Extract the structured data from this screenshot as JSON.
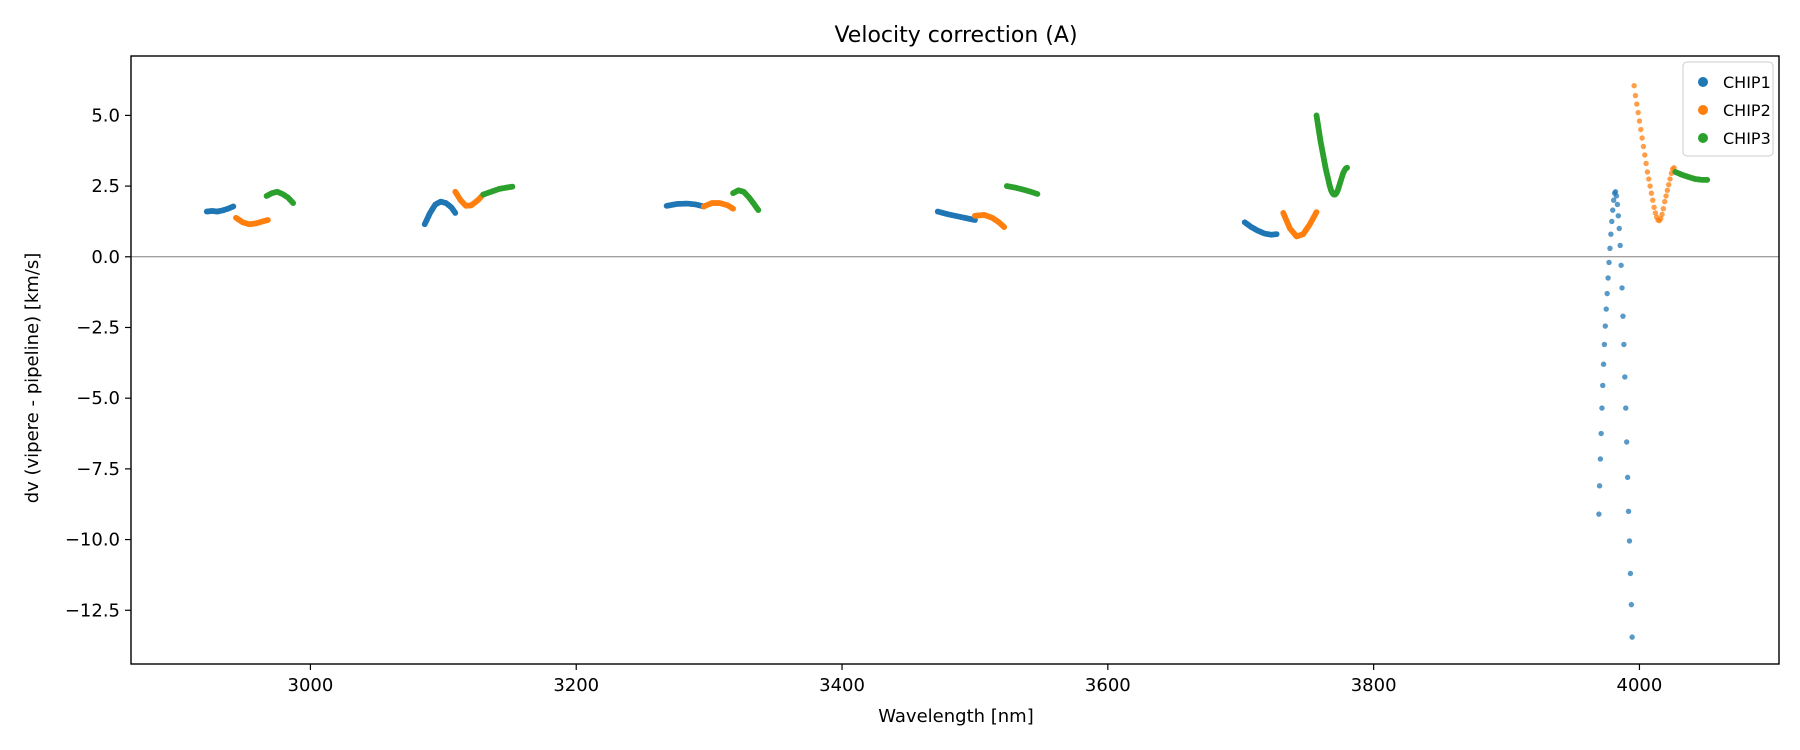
{
  "chart_data": {
    "type": "scatter",
    "title": "Velocity correction (A)",
    "xlabel": "Wavelength [nm]",
    "ylabel": "dv (vipere - pipeline) [km/s]",
    "xlim": [
      2865,
      4105
    ],
    "ylim": [
      -14.4,
      7.1
    ],
    "xticks": [
      3000,
      3200,
      3400,
      3600,
      3800,
      4000
    ],
    "xtick_labels": [
      "3000",
      "3200",
      "3400",
      "3600",
      "3800",
      "4000"
    ],
    "yticks": [
      5.0,
      2.5,
      0.0,
      -2.5,
      -5.0,
      -7.5,
      -10.0,
      -12.5
    ],
    "ytick_labels": [
      "5.0",
      "2.5",
      "0.0",
      "−2.5",
      "−5.0",
      "−7.5",
      "−10.0",
      "−12.5"
    ],
    "hline": 0.0,
    "grid": false,
    "legend_position": "top-right",
    "series": [
      {
        "name": "CHIP1",
        "color": "#1f77b4",
        "segments": [
          {
            "x": [
              2922,
              2926,
              2930,
              2934,
              2938,
              2942
            ],
            "y": [
              1.6,
              1.62,
              1.6,
              1.64,
              1.7,
              1.78
            ]
          },
          {
            "x": [
              3086,
              3090,
              3094,
              3098,
              3102,
              3106,
              3109
            ],
            "y": [
              1.15,
              1.55,
              1.85,
              1.95,
              1.9,
              1.75,
              1.55
            ]
          },
          {
            "x": [
              3268,
              3276,
              3284,
              3290,
              3296
            ],
            "y": [
              1.8,
              1.87,
              1.88,
              1.85,
              1.78
            ]
          },
          {
            "x": [
              3472,
              3480,
              3488,
              3494,
              3500
            ],
            "y": [
              1.6,
              1.5,
              1.42,
              1.36,
              1.3
            ]
          },
          {
            "x": [
              3703,
              3708,
              3713,
              3718,
              3723,
              3727
            ],
            "y": [
              1.22,
              1.05,
              0.92,
              0.82,
              0.78,
              0.8
            ]
          },
          {
            "x": [
              3969.5,
              3970,
              3970.6,
              3971.2,
              3971.8,
              3972.4,
              3973,
              3973.6,
              3974.3,
              3975,
              3975.7,
              3976.4,
              3977.1,
              3977.8,
              3978.5,
              3979.2,
              3979.9,
              3980.6,
              3981.3,
              3982,
              3982.7,
              3983.4,
              3984.1,
              3984.8,
              3985.5,
              3986.2,
              3986.9,
              3987.6,
              3988.3,
              3989,
              3989.7,
              3990.4,
              3991.1,
              3991.8,
              3992.5,
              3993.2,
              3993.9
            ],
            "y": [
              -9.1,
              -8.1,
              -7.15,
              -6.25,
              -5.35,
              -4.55,
              -3.8,
              -3.1,
              -2.45,
              -1.85,
              -1.3,
              -0.75,
              -0.2,
              0.3,
              0.8,
              1.25,
              1.65,
              2.0,
              2.25,
              2.3,
              2.15,
              1.85,
              1.45,
              1.0,
              0.4,
              -0.3,
              -1.1,
              -2.1,
              -3.1,
              -4.25,
              -5.35,
              -6.55,
              -7.8,
              -9.0,
              -10.05,
              -11.2,
              -12.3
            ]
          },
          {
            "x": [
              3994.5
            ],
            "y": [
              -13.45
            ]
          }
        ]
      },
      {
        "name": "CHIP2",
        "color": "#ff7f0e",
        "segments": [
          {
            "x": [
              2944,
              2949,
              2954,
              2959,
              2964,
              2968
            ],
            "y": [
              1.38,
              1.22,
              1.15,
              1.18,
              1.25,
              1.3
            ]
          },
          {
            "x": [
              3109,
              3113,
              3117,
              3121,
              3126,
              3130
            ],
            "y": [
              2.3,
              2.0,
              1.8,
              1.82,
              2.0,
              2.2
            ]
          },
          {
            "x": [
              3296,
              3302,
              3308,
              3314,
              3318
            ],
            "y": [
              1.78,
              1.9,
              1.9,
              1.82,
              1.7
            ]
          },
          {
            "x": [
              3500,
              3507,
              3513,
              3518,
              3522
            ],
            "y": [
              1.45,
              1.48,
              1.38,
              1.22,
              1.05
            ]
          },
          {
            "x": [
              3732,
              3737,
              3742,
              3747,
              3752,
              3757
            ],
            "y": [
              1.55,
              1.0,
              0.72,
              0.8,
              1.15,
              1.58
            ]
          },
          {
            "x": [
              3996,
              3997,
              3998,
              3999,
              4000,
              4001,
              4002,
              4003,
              4004,
              4005,
              4006,
              4007,
              4008,
              4009,
              4010,
              4011,
              4012,
              4013,
              4014,
              4015,
              4016,
              4017,
              4018,
              4019,
              4020,
              4021,
              4022,
              4023,
              4024,
              4025,
              4026
            ],
            "y": [
              6.05,
              5.7,
              5.4,
              5.1,
              4.8,
              4.5,
              4.2,
              3.9,
              3.6,
              3.3,
              3.0,
              2.75,
              2.5,
              2.25,
              2.0,
              1.75,
              1.55,
              1.4,
              1.3,
              1.28,
              1.35,
              1.5,
              1.7,
              1.95,
              2.15,
              2.35,
              2.55,
              2.75,
              2.95,
              3.1,
              3.15
            ]
          }
        ]
      },
      {
        "name": "CHIP3",
        "color": "#2ca02c",
        "segments": [
          {
            "x": [
              2967,
              2971,
              2975,
              2979,
              2983,
              2987
            ],
            "y": [
              2.15,
              2.25,
              2.3,
              2.22,
              2.1,
              1.9
            ]
          },
          {
            "x": [
              3130,
              3136,
              3142,
              3148,
              3152
            ],
            "y": [
              2.2,
              2.3,
              2.4,
              2.45,
              2.48
            ]
          },
          {
            "x": [
              3318,
              3322,
              3326,
              3330,
              3334,
              3337
            ],
            "y": [
              2.25,
              2.35,
              2.3,
              2.1,
              1.85,
              1.65
            ]
          },
          {
            "x": [
              3524,
              3530,
              3536,
              3542,
              3547
            ],
            "y": [
              2.5,
              2.45,
              2.38,
              2.3,
              2.22
            ]
          },
          {
            "x": [
              3757,
              3758,
              3759,
              3760,
              3761,
              3762,
              3763,
              3764,
              3765,
              3766,
              3767,
              3768,
              3769,
              3770,
              3771,
              3772,
              3773,
              3774,
              3775,
              3776,
              3777,
              3778,
              3779,
              3780
            ],
            "y": [
              5.0,
              4.7,
              4.4,
              4.1,
              3.85,
              3.6,
              3.35,
              3.1,
              2.9,
              2.7,
              2.5,
              2.35,
              2.25,
              2.2,
              2.2,
              2.25,
              2.35,
              2.5,
              2.65,
              2.8,
              2.95,
              3.05,
              3.12,
              3.15
            ]
          },
          {
            "x": [
              4027,
              4032,
              4037,
              4042,
              4047,
              4051
            ],
            "y": [
              3.0,
              2.9,
              2.82,
              2.75,
              2.72,
              2.72
            ]
          }
        ]
      }
    ]
  }
}
